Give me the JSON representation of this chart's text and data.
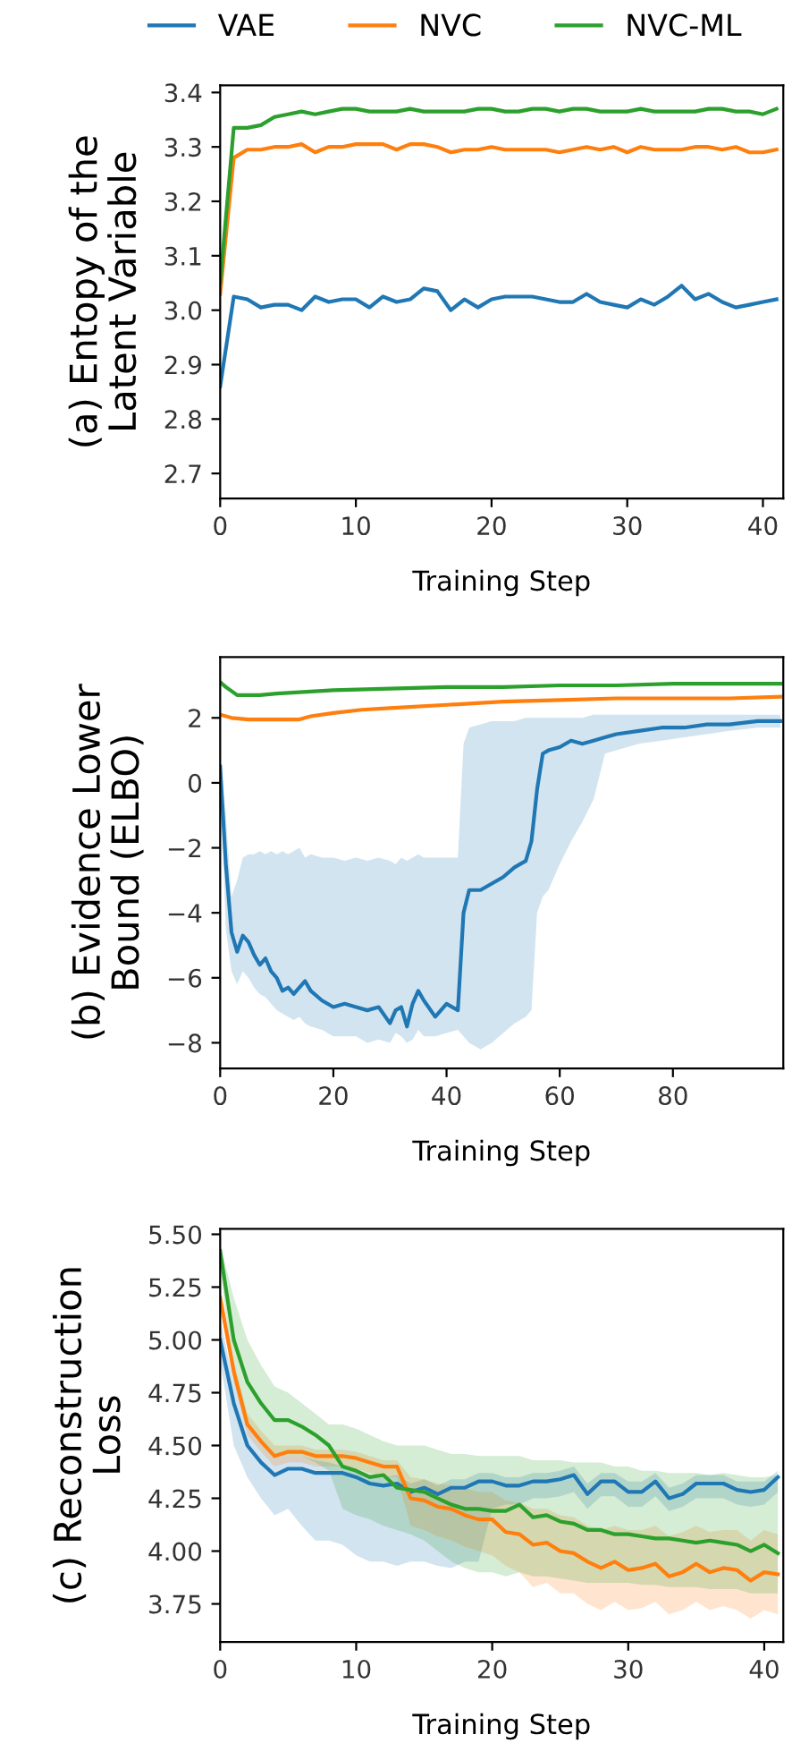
{
  "chart_data": [
    {
      "type": "line",
      "xlabel": "Training Step",
      "ylabel": "(a) Entopy of the\nLatent Variable",
      "legend": "top",
      "xlim": [
        0,
        41.5
      ],
      "ylim": [
        2.654,
        3.413
      ],
      "xticks": [
        0,
        10,
        20,
        30,
        40
      ],
      "yticks": [
        2.7,
        2.8,
        2.9,
        {
          "value": 3.0,
          "label": "3.0"
        },
        3.1,
        3.2,
        3.3,
        3.4
      ],
      "x": [
        0,
        1,
        2,
        3,
        4,
        5,
        6,
        7,
        8,
        9,
        10,
        11,
        12,
        13,
        14,
        15,
        16,
        17,
        18,
        19,
        20,
        21,
        22,
        23,
        24,
        25,
        26,
        27,
        28,
        29,
        30,
        31,
        32,
        33,
        34,
        35,
        36,
        37,
        38,
        39,
        40,
        41
      ],
      "series": [
        {
          "name": "VAE",
          "color": "#1f77b4",
          "values": [
            2.86,
            3.025,
            3.02,
            3.005,
            3.01,
            3.01,
            3.0,
            3.025,
            3.015,
            3.02,
            3.02,
            3.005,
            3.025,
            3.015,
            3.02,
            3.04,
            3.035,
            3.0,
            3.02,
            3.005,
            3.02,
            3.025,
            3.025,
            3.025,
            3.02,
            3.015,
            3.015,
            3.03,
            3.015,
            3.01,
            3.005,
            3.02,
            3.01,
            3.025,
            3.045,
            3.02,
            3.03,
            3.015,
            3.005,
            3.01,
            3.015,
            3.02
          ]
        },
        {
          "name": "NVC",
          "color": "#ff7f0e",
          "values": [
            3.03,
            3.28,
            3.295,
            3.295,
            3.3,
            3.3,
            3.305,
            3.29,
            3.3,
            3.3,
            3.305,
            3.305,
            3.305,
            3.295,
            3.305,
            3.305,
            3.3,
            3.29,
            3.295,
            3.295,
            3.3,
            3.295,
            3.295,
            3.295,
            3.295,
            3.29,
            3.295,
            3.3,
            3.295,
            3.3,
            3.29,
            3.3,
            3.295,
            3.295,
            3.295,
            3.3,
            3.3,
            3.295,
            3.3,
            3.29,
            3.29,
            3.295
          ]
        },
        {
          "name": "NVC-ML",
          "color": "#2ca02c",
          "values": [
            3.05,
            3.335,
            3.335,
            3.34,
            3.355,
            3.36,
            3.365,
            3.36,
            3.365,
            3.37,
            3.37,
            3.365,
            3.365,
            3.365,
            3.37,
            3.365,
            3.365,
            3.365,
            3.365,
            3.37,
            3.37,
            3.365,
            3.365,
            3.37,
            3.37,
            3.365,
            3.37,
            3.37,
            3.365,
            3.365,
            3.365,
            3.37,
            3.365,
            3.365,
            3.365,
            3.365,
            3.37,
            3.37,
            3.365,
            3.365,
            3.36,
            3.37
          ]
        }
      ]
    },
    {
      "type": "line",
      "xlabel": "Training Step",
      "ylabel": "(b) Evidence Lower\nBound (ELBO)",
      "xlim": [
        0,
        99.5
      ],
      "ylim": [
        -8.79,
        3.87
      ],
      "xticks": [
        0,
        20,
        40,
        60,
        80
      ],
      "yticks": [
        {
          "value": -8,
          "label": "−8"
        },
        {
          "value": -6,
          "label": "−6"
        },
        {
          "value": -4,
          "label": "−4"
        },
        {
          "value": -2,
          "label": "−2"
        },
        0,
        2
      ],
      "series": [
        {
          "color": "#1f77b4",
          "x": [
            0,
            1,
            2,
            3,
            4,
            5,
            6,
            7,
            8,
            9,
            10,
            11,
            12,
            13,
            14,
            15,
            16,
            18,
            20,
            22,
            24,
            26,
            28,
            30,
            31,
            32,
            33,
            34,
            35,
            36,
            38,
            40,
            42,
            43,
            44,
            46,
            48,
            50,
            52,
            54,
            55,
            56,
            57,
            58,
            60,
            62,
            64,
            66,
            68,
            70,
            74,
            78,
            82,
            86,
            90,
            95,
            99
          ],
          "values": [
            0.5,
            -2.5,
            -4.6,
            -5.2,
            -4.7,
            -4.9,
            -5.3,
            -5.6,
            -5.4,
            -5.8,
            -6.0,
            -6.4,
            -6.3,
            -6.5,
            -6.3,
            -6.1,
            -6.4,
            -6.7,
            -6.9,
            -6.8,
            -6.9,
            -7.0,
            -6.9,
            -7.4,
            -7.0,
            -6.9,
            -7.5,
            -6.8,
            -6.4,
            -6.7,
            -7.2,
            -6.8,
            -7.0,
            -4.0,
            -3.3,
            -3.3,
            -3.1,
            -2.9,
            -2.6,
            -2.4,
            -1.8,
            -0.2,
            0.9,
            1.0,
            1.1,
            1.3,
            1.2,
            1.3,
            1.4,
            1.5,
            1.6,
            1.7,
            1.7,
            1.8,
            1.8,
            1.9,
            1.9
          ],
          "upper": [
            0.6,
            -1.0,
            -3.5,
            -3.0,
            -2.3,
            -2.2,
            -2.2,
            -2.1,
            -2.2,
            -2.1,
            -2.2,
            -2.1,
            -2.2,
            -2.1,
            -2.0,
            -2.3,
            -2.2,
            -2.3,
            -2.3,
            -2.4,
            -2.3,
            -2.4,
            -2.3,
            -2.4,
            -2.5,
            -2.3,
            -2.4,
            -2.3,
            -2.2,
            -2.3,
            -2.3,
            -2.3,
            -2.3,
            1.2,
            1.7,
            1.8,
            1.9,
            1.9,
            1.9,
            2.0,
            2.0,
            2.0,
            2.0,
            2.0,
            2.0,
            2.0,
            2.0,
            2.1,
            2.1,
            2.1,
            2.1,
            2.1,
            2.1,
            2.1,
            2.1,
            2.1,
            2.1
          ],
          "lower": [
            0.3,
            -4.5,
            -5.8,
            -6.2,
            -5.8,
            -6.0,
            -6.3,
            -6.5,
            -6.6,
            -6.8,
            -7.0,
            -7.1,
            -7.2,
            -7.3,
            -7.2,
            -7.4,
            -7.5,
            -7.6,
            -7.8,
            -7.8,
            -7.8,
            -8.0,
            -7.9,
            -8.0,
            -7.7,
            -7.8,
            -8.0,
            -7.9,
            -7.6,
            -7.8,
            -7.8,
            -7.7,
            -7.6,
            -7.8,
            -8.0,
            -8.2,
            -8.0,
            -7.7,
            -7.4,
            -7.2,
            -7.0,
            -4.0,
            -3.5,
            -3.3,
            -2.5,
            -1.8,
            -1.2,
            -0.5,
            0.9,
            1.0,
            1.2,
            1.3,
            1.4,
            1.5,
            1.6,
            1.7,
            1.7
          ]
        },
        {
          "color": "#ff7f0e",
          "x": [
            0,
            2,
            5,
            10,
            14,
            16,
            20,
            25,
            30,
            40,
            50,
            60,
            70,
            80,
            90,
            99
          ],
          "values": [
            2.1,
            2.0,
            1.95,
            1.95,
            1.95,
            2.05,
            2.15,
            2.25,
            2.3,
            2.4,
            2.5,
            2.55,
            2.6,
            2.6,
            2.6,
            2.65
          ]
        },
        {
          "color": "#2ca02c",
          "x": [
            0,
            1,
            3,
            7,
            10,
            20,
            30,
            40,
            50,
            60,
            70,
            80,
            90,
            99
          ],
          "values": [
            3.1,
            2.95,
            2.7,
            2.7,
            2.75,
            2.85,
            2.9,
            2.95,
            2.95,
            3.0,
            3.0,
            3.05,
            3.05,
            3.05
          ]
        }
      ]
    },
    {
      "type": "line",
      "xlabel": "Training Step",
      "ylabel": "(c) Reconstruction\nLoss",
      "xlim": [
        0,
        41.4
      ],
      "ylim": [
        3.57,
        5.526
      ],
      "xticks": [
        0,
        10,
        20,
        30,
        40
      ],
      "yticks": [
        {
          "value": 3.75,
          "label": "3.75"
        },
        {
          "value": 4.0,
          "label": "4.00"
        },
        {
          "value": 4.25,
          "label": "4.25"
        },
        {
          "value": 4.5,
          "label": "4.50"
        },
        {
          "value": 4.75,
          "label": "4.75"
        },
        {
          "value": 5.0,
          "label": "5.00"
        },
        {
          "value": 5.25,
          "label": "5.25"
        },
        {
          "value": 5.5,
          "label": "5.50"
        }
      ],
      "x": [
        0,
        1,
        2,
        3,
        4,
        5,
        6,
        7,
        8,
        9,
        10,
        11,
        12,
        13,
        14,
        15,
        16,
        17,
        18,
        19,
        20,
        21,
        22,
        23,
        24,
        25,
        26,
        27,
        28,
        29,
        30,
        31,
        32,
        33,
        34,
        35,
        36,
        37,
        38,
        39,
        40,
        41
      ],
      "series": [
        {
          "color": "#1f77b4",
          "values": [
            5.0,
            4.7,
            4.5,
            4.42,
            4.36,
            4.39,
            4.39,
            4.37,
            4.37,
            4.37,
            4.35,
            4.32,
            4.31,
            4.32,
            4.28,
            4.3,
            4.27,
            4.3,
            4.3,
            4.33,
            4.33,
            4.31,
            4.31,
            4.33,
            4.33,
            4.34,
            4.36,
            4.27,
            4.33,
            4.33,
            4.28,
            4.28,
            4.33,
            4.25,
            4.27,
            4.32,
            4.32,
            4.32,
            4.29,
            4.28,
            4.29,
            4.35
          ],
          "upper": [
            5.1,
            4.8,
            4.6,
            4.5,
            4.45,
            4.45,
            4.45,
            4.43,
            4.42,
            4.4,
            4.38,
            4.36,
            4.35,
            4.36,
            4.32,
            4.34,
            4.31,
            4.34,
            4.34,
            4.37,
            4.37,
            4.35,
            4.35,
            4.37,
            4.37,
            4.38,
            4.4,
            4.32,
            4.37,
            4.37,
            4.33,
            4.33,
            4.37,
            4.3,
            4.32,
            4.36,
            4.36,
            4.36,
            4.33,
            4.33,
            4.33,
            4.38
          ],
          "lower": [
            4.9,
            4.5,
            4.35,
            4.25,
            4.17,
            4.2,
            4.12,
            4.05,
            4.05,
            4.03,
            3.98,
            3.95,
            3.95,
            3.93,
            3.95,
            3.95,
            3.93,
            3.92,
            3.95,
            3.95,
            4.2,
            4.22,
            4.22,
            4.25,
            4.25,
            4.26,
            4.28,
            4.2,
            4.26,
            4.26,
            4.21,
            4.21,
            4.26,
            4.19,
            4.21,
            4.25,
            4.25,
            4.25,
            4.22,
            4.21,
            4.22,
            4.28
          ]
        },
        {
          "color": "#ff7f0e",
          "values": [
            5.2,
            4.85,
            4.6,
            4.52,
            4.45,
            4.47,
            4.47,
            4.45,
            4.45,
            4.45,
            4.44,
            4.42,
            4.4,
            4.4,
            4.25,
            4.24,
            4.21,
            4.2,
            4.17,
            4.15,
            4.15,
            4.09,
            4.08,
            4.03,
            4.04,
            4.0,
            3.99,
            3.95,
            3.92,
            3.95,
            3.91,
            3.92,
            3.94,
            3.88,
            3.9,
            3.94,
            3.9,
            3.92,
            3.91,
            3.86,
            3.9,
            3.89
          ],
          "upper": [
            5.25,
            4.9,
            4.65,
            4.57,
            4.5,
            4.5,
            4.5,
            4.48,
            4.48,
            4.48,
            4.47,
            4.45,
            4.43,
            4.43,
            4.35,
            4.34,
            4.32,
            4.31,
            4.3,
            4.28,
            4.28,
            4.24,
            4.23,
            4.2,
            4.2,
            4.17,
            4.16,
            4.12,
            4.1,
            4.12,
            4.1,
            4.1,
            4.12,
            4.07,
            4.09,
            4.12,
            4.09,
            4.1,
            4.1,
            4.05,
            4.1,
            4.08
          ],
          "lower": [
            5.15,
            4.8,
            4.55,
            4.47,
            4.4,
            4.42,
            4.42,
            4.4,
            4.4,
            4.4,
            4.39,
            4.37,
            4.35,
            4.35,
            4.12,
            4.1,
            4.07,
            4.05,
            4.02,
            4.0,
            3.98,
            3.93,
            3.9,
            3.83,
            3.85,
            3.8,
            3.8,
            3.75,
            3.72,
            3.76,
            3.72,
            3.73,
            3.76,
            3.7,
            3.72,
            3.76,
            3.72,
            3.74,
            3.72,
            3.68,
            3.72,
            3.7
          ]
        },
        {
          "color": "#2ca02c",
          "values": [
            5.42,
            5.0,
            4.8,
            4.7,
            4.62,
            4.62,
            4.59,
            4.55,
            4.5,
            4.4,
            4.38,
            4.35,
            4.36,
            4.3,
            4.29,
            4.28,
            4.25,
            4.22,
            4.2,
            4.2,
            4.19,
            4.19,
            4.22,
            4.16,
            4.17,
            4.14,
            4.13,
            4.1,
            4.1,
            4.08,
            4.08,
            4.07,
            4.06,
            4.06,
            4.05,
            4.04,
            4.05,
            4.04,
            4.03,
            4.0,
            4.03,
            3.99
          ],
          "upper": [
            5.45,
            5.2,
            5.0,
            4.88,
            4.78,
            4.75,
            4.7,
            4.65,
            4.6,
            4.6,
            4.58,
            4.55,
            4.52,
            4.5,
            4.5,
            4.5,
            4.48,
            4.46,
            4.46,
            4.45,
            4.45,
            4.45,
            4.45,
            4.43,
            4.43,
            4.43,
            4.42,
            4.42,
            4.42,
            4.4,
            4.4,
            4.38,
            4.38,
            4.37,
            4.37,
            4.37,
            4.36,
            4.37,
            4.36,
            4.35,
            4.35,
            4.36
          ],
          "lower": [
            5.35,
            4.8,
            4.6,
            4.5,
            4.45,
            4.45,
            4.45,
            4.42,
            4.38,
            4.2,
            4.17,
            4.15,
            4.12,
            4.1,
            4.08,
            4.05,
            4.0,
            3.95,
            3.92,
            3.9,
            3.9,
            3.88,
            3.9,
            3.88,
            3.88,
            3.87,
            3.86,
            3.85,
            3.85,
            3.85,
            3.85,
            3.84,
            3.84,
            3.83,
            3.83,
            3.83,
            3.82,
            3.82,
            3.82,
            3.8,
            3.8,
            3.8
          ]
        }
      ]
    }
  ]
}
